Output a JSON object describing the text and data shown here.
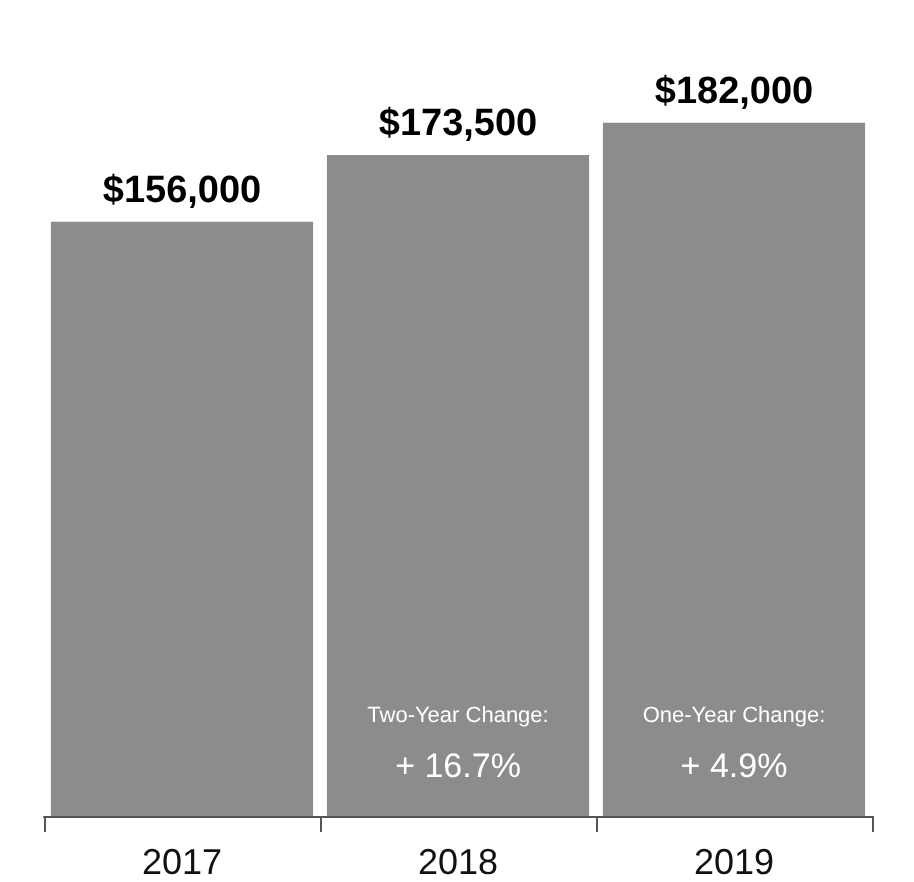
{
  "chart_data": {
    "type": "bar",
    "categories": [
      "2017",
      "2018",
      "2019"
    ],
    "values": [
      156000,
      173500,
      182000
    ],
    "color": "#8c8c8c",
    "value_labels": [
      "$156,000",
      "$173,500",
      "$182,000"
    ],
    "annotations": [
      "Two-Year Change:",
      "+ 16.7%",
      "One-Year Change:",
      "+ 4.9%"
    ],
    "grid": false
  }
}
